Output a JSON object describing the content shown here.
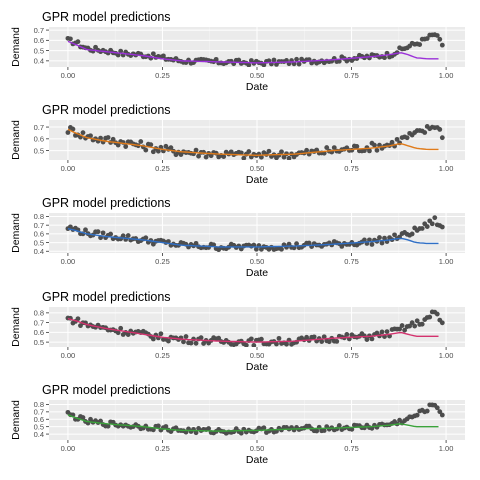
{
  "colors": {
    "panel_bg": "#ebebeb",
    "grid_major": "#ffffff",
    "points": "#4d4d4d",
    "series_colors": [
      "#9b30d9",
      "#e07b1a",
      "#2f6fc6",
      "#d4326e",
      "#3aa33a"
    ]
  },
  "chart_data": [
    {
      "type": "scatter",
      "title": "GPR model predictions",
      "xlabel": "Date",
      "ylabel": "Demand",
      "xlim": [
        -0.05,
        1.05
      ],
      "ylim": [
        0.34,
        0.73
      ],
      "xticks": [
        "0.00",
        "0.25",
        "0.50",
        "0.75",
        "1.00"
      ],
      "yticks": [
        "0.4",
        "0.5",
        "0.6",
        "0.7"
      ],
      "ytick_values": [
        0.4,
        0.5,
        0.6,
        0.7
      ],
      "grid": true,
      "curve_color": "#9b30d9",
      "curve": {
        "x": [
          0.0,
          0.02,
          0.05,
          0.1,
          0.15,
          0.2,
          0.25,
          0.3,
          0.4,
          0.5,
          0.6,
          0.7,
          0.8,
          0.85,
          0.88,
          0.9,
          0.92,
          0.95,
          0.98
        ],
        "y": [
          0.59,
          0.56,
          0.51,
          0.49,
          0.47,
          0.45,
          0.42,
          0.4,
          0.39,
          0.38,
          0.39,
          0.41,
          0.44,
          0.46,
          0.48,
          0.46,
          0.43,
          0.42,
          0.42
        ]
      },
      "profile": {
        "x": [
          0.0,
          0.02,
          0.05,
          0.1,
          0.15,
          0.2,
          0.25,
          0.3,
          0.4,
          0.5,
          0.6,
          0.7,
          0.8,
          0.85,
          0.9,
          0.93,
          0.95,
          0.97,
          0.99
        ],
        "y": [
          0.6,
          0.58,
          0.52,
          0.5,
          0.47,
          0.46,
          0.43,
          0.4,
          0.39,
          0.38,
          0.39,
          0.41,
          0.44,
          0.46,
          0.54,
          0.58,
          0.62,
          0.66,
          0.56
        ]
      },
      "scatter_amp": 0.025
    },
    {
      "type": "scatter",
      "title": "GPR model predictions",
      "xlabel": "Date",
      "ylabel": "Demand",
      "xlim": [
        -0.05,
        1.05
      ],
      "ylim": [
        0.42,
        0.76
      ],
      "xticks": [
        "0.00",
        "0.25",
        "0.50",
        "0.75",
        "1.00"
      ],
      "yticks": [
        "0.5",
        "0.6",
        "0.7"
      ],
      "ytick_values": [
        0.5,
        0.6,
        0.7
      ],
      "grid": true,
      "curve_color": "#e07b1a",
      "curve": {
        "x": [
          0.0,
          0.02,
          0.05,
          0.1,
          0.15,
          0.2,
          0.25,
          0.3,
          0.4,
          0.5,
          0.6,
          0.7,
          0.8,
          0.85,
          0.88,
          0.9,
          0.92,
          0.95,
          0.98
        ],
        "y": [
          0.68,
          0.65,
          0.61,
          0.58,
          0.56,
          0.54,
          0.51,
          0.49,
          0.47,
          0.46,
          0.47,
          0.5,
          0.52,
          0.54,
          0.56,
          0.54,
          0.52,
          0.51,
          0.51
        ]
      },
      "profile": {
        "x": [
          0.0,
          0.02,
          0.05,
          0.1,
          0.15,
          0.2,
          0.25,
          0.3,
          0.4,
          0.5,
          0.6,
          0.7,
          0.8,
          0.85,
          0.9,
          0.93,
          0.95,
          0.97,
          0.99
        ],
        "y": [
          0.68,
          0.66,
          0.62,
          0.59,
          0.57,
          0.54,
          0.51,
          0.49,
          0.47,
          0.46,
          0.47,
          0.5,
          0.53,
          0.55,
          0.62,
          0.65,
          0.68,
          0.72,
          0.64
        ]
      },
      "scatter_amp": 0.035
    },
    {
      "type": "scatter",
      "title": "GPR model predictions",
      "xlabel": "Date",
      "ylabel": "Demand",
      "xlim": [
        -0.05,
        1.05
      ],
      "ylim": [
        0.38,
        0.84
      ],
      "xticks": [
        "0.00",
        "0.25",
        "0.50",
        "0.75",
        "1.00"
      ],
      "yticks": [
        "0.4",
        "0.5",
        "0.6",
        "0.7",
        "0.8"
      ],
      "ytick_values": [
        0.4,
        0.5,
        0.6,
        0.7,
        0.8
      ],
      "grid": true,
      "curve_color": "#2f6fc6",
      "curve": {
        "x": [
          0.0,
          0.02,
          0.05,
          0.1,
          0.15,
          0.2,
          0.25,
          0.3,
          0.4,
          0.5,
          0.6,
          0.7,
          0.8,
          0.85,
          0.88,
          0.9,
          0.92,
          0.95,
          0.98
        ],
        "y": [
          0.66,
          0.64,
          0.6,
          0.57,
          0.55,
          0.53,
          0.5,
          0.47,
          0.45,
          0.45,
          0.46,
          0.48,
          0.51,
          0.53,
          0.55,
          0.53,
          0.5,
          0.49,
          0.49
        ]
      },
      "profile": {
        "x": [
          0.0,
          0.02,
          0.05,
          0.1,
          0.15,
          0.2,
          0.25,
          0.3,
          0.4,
          0.5,
          0.6,
          0.7,
          0.8,
          0.85,
          0.9,
          0.93,
          0.95,
          0.97,
          0.99
        ],
        "y": [
          0.67,
          0.65,
          0.61,
          0.58,
          0.56,
          0.53,
          0.5,
          0.47,
          0.45,
          0.45,
          0.46,
          0.48,
          0.51,
          0.54,
          0.6,
          0.66,
          0.7,
          0.76,
          0.66
        ]
      },
      "scatter_amp": 0.035
    },
    {
      "type": "scatter",
      "title": "GPR model predictions",
      "xlabel": "Date",
      "ylabel": "Demand",
      "xlim": [
        -0.05,
        1.05
      ],
      "ylim": [
        0.45,
        0.86
      ],
      "xticks": [
        "0.00",
        "0.25",
        "0.50",
        "0.75",
        "1.00"
      ],
      "yticks": [
        "0.5",
        "0.6",
        "0.7",
        "0.8"
      ],
      "ytick_values": [
        0.5,
        0.6,
        0.7,
        0.8
      ],
      "grid": true,
      "curve_color": "#d4326e",
      "curve": {
        "x": [
          0.0,
          0.02,
          0.05,
          0.1,
          0.15,
          0.2,
          0.25,
          0.3,
          0.4,
          0.5,
          0.6,
          0.7,
          0.8,
          0.85,
          0.88,
          0.9,
          0.92,
          0.95,
          0.98
        ],
        "y": [
          0.74,
          0.72,
          0.68,
          0.64,
          0.61,
          0.58,
          0.55,
          0.53,
          0.51,
          0.5,
          0.51,
          0.54,
          0.56,
          0.58,
          0.6,
          0.58,
          0.56,
          0.56,
          0.56
        ]
      },
      "profile": {
        "x": [
          0.0,
          0.02,
          0.05,
          0.1,
          0.15,
          0.2,
          0.25,
          0.3,
          0.4,
          0.5,
          0.6,
          0.7,
          0.8,
          0.85,
          0.9,
          0.93,
          0.95,
          0.97,
          0.99
        ],
        "y": [
          0.74,
          0.72,
          0.68,
          0.64,
          0.61,
          0.58,
          0.55,
          0.53,
          0.51,
          0.5,
          0.51,
          0.54,
          0.56,
          0.59,
          0.66,
          0.7,
          0.74,
          0.8,
          0.7
        ]
      },
      "scatter_amp": 0.035
    },
    {
      "type": "scatter",
      "title": "GPR model predictions",
      "xlabel": "Date",
      "ylabel": "Demand",
      "xlim": [
        -0.05,
        1.05
      ],
      "ylim": [
        0.32,
        0.86
      ],
      "xticks": [
        "0.00",
        "0.25",
        "0.50",
        "0.75",
        "1.00"
      ],
      "yticks": [
        "0.4",
        "0.5",
        "0.6",
        "0.7",
        "0.8"
      ],
      "ytick_values": [
        0.4,
        0.5,
        0.6,
        0.7,
        0.8
      ],
      "grid": true,
      "curve_color": "#3aa33a",
      "curve": {
        "x": [
          0.0,
          0.02,
          0.05,
          0.1,
          0.15,
          0.2,
          0.25,
          0.3,
          0.4,
          0.5,
          0.6,
          0.7,
          0.8,
          0.85,
          0.88,
          0.9,
          0.92,
          0.95,
          0.98
        ],
        "y": [
          0.66,
          0.62,
          0.57,
          0.54,
          0.52,
          0.5,
          0.47,
          0.45,
          0.44,
          0.45,
          0.47,
          0.48,
          0.5,
          0.52,
          0.54,
          0.52,
          0.5,
          0.5,
          0.5
        ]
      },
      "profile": {
        "x": [
          0.0,
          0.02,
          0.05,
          0.1,
          0.15,
          0.2,
          0.25,
          0.3,
          0.4,
          0.5,
          0.6,
          0.7,
          0.8,
          0.85,
          0.9,
          0.93,
          0.95,
          0.97,
          0.99
        ],
        "y": [
          0.67,
          0.63,
          0.57,
          0.54,
          0.52,
          0.5,
          0.48,
          0.45,
          0.44,
          0.45,
          0.47,
          0.48,
          0.5,
          0.53,
          0.6,
          0.68,
          0.74,
          0.8,
          0.68
        ]
      },
      "scatter_amp": 0.035
    }
  ]
}
